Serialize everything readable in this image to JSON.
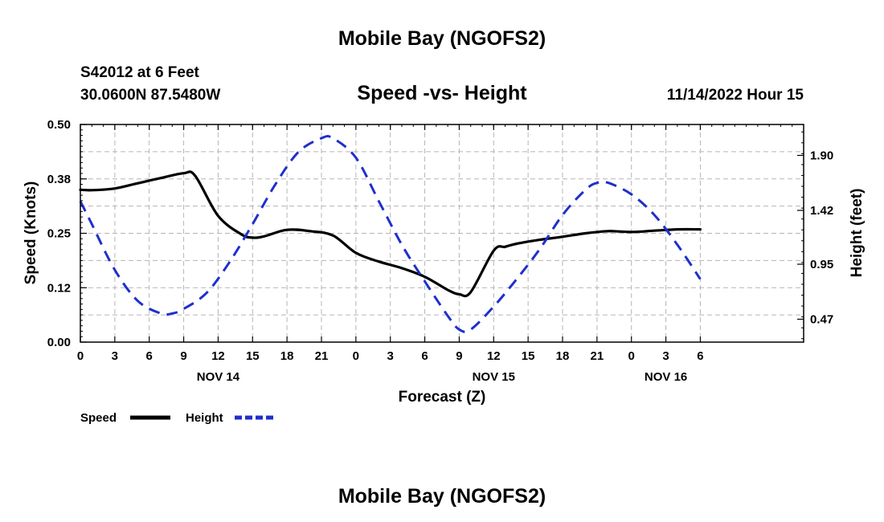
{
  "header": {
    "title": "Mobile Bay (NGOFS2)",
    "station": "S42012 at 6 Feet",
    "coords": "30.0600N  87.5480W",
    "timestamp": "11/14/2022 Hour 15"
  },
  "footer": {
    "title": "Mobile Bay (NGOFS2)"
  },
  "chart_data": {
    "type": "line",
    "title": "Speed -vs- Height",
    "xlabel": "Forecast (Z)",
    "ylabel": "Speed (Knots)",
    "y2label": "Height (feet)",
    "grid": true,
    "xlim": [
      0,
      63
    ],
    "ylim": [
      0,
      0.5
    ],
    "y2lim": [
      0.27,
      2.17
    ],
    "x_ticks": [
      0,
      3,
      6,
      9,
      12,
      15,
      18,
      21,
      24,
      27,
      30,
      33,
      36,
      39,
      42,
      45,
      48,
      51,
      54
    ],
    "x_tick_labels": [
      "0",
      "3",
      "6",
      "9",
      "12",
      "15",
      "18",
      "21",
      "0",
      "3",
      "6",
      "9",
      "12",
      "15",
      "18",
      "21",
      "0",
      "3",
      "6"
    ],
    "y_ticks": [
      0,
      0.125,
      0.25,
      0.375,
      0.5
    ],
    "y_tick_labels": [
      "0.00",
      "0.12",
      "0.25",
      "0.38",
      "0.50"
    ],
    "y2_ticks": [
      0.47,
      0.95,
      1.42,
      1.9
    ],
    "y2_tick_labels": [
      "0.47",
      "0.95",
      "1.42",
      "1.90"
    ],
    "date_labels": [
      {
        "x": 12,
        "label": "NOV 14"
      },
      {
        "x": 36,
        "label": "NOV 15"
      },
      {
        "x": 51,
        "label": "NOV 16"
      }
    ],
    "legend": {
      "position": "bottom-left"
    },
    "series": [
      {
        "name": "Speed",
        "axis": "left",
        "color": "#000000",
        "style": "solid",
        "x": [
          0,
          1,
          3,
          5,
          7,
          9,
          10,
          12,
          14,
          15,
          16,
          18,
          20,
          22,
          24,
          26,
          28,
          30,
          32,
          33,
          34,
          36,
          37,
          38,
          40,
          42,
          44,
          46,
          48,
          50,
          52,
          54
        ],
        "y": [
          0.35,
          0.349,
          0.353,
          0.365,
          0.377,
          0.388,
          0.382,
          0.29,
          0.248,
          0.24,
          0.243,
          0.258,
          0.255,
          0.245,
          0.205,
          0.185,
          0.17,
          0.15,
          0.12,
          0.11,
          0.115,
          0.21,
          0.219,
          0.226,
          0.235,
          0.242,
          0.25,
          0.255,
          0.253,
          0.256,
          0.259,
          0.259
        ]
      },
      {
        "name": "Height",
        "axis": "right",
        "color": "#1f2fcc",
        "style": "dashed",
        "x": [
          0,
          1,
          3,
          5,
          7,
          8,
          9,
          11,
          13,
          15,
          17,
          19,
          21,
          22,
          24,
          26,
          28,
          30,
          32,
          33,
          34,
          36,
          38,
          40,
          42,
          44,
          45,
          46,
          48,
          50,
          52,
          54
        ],
        "y": [
          1.5,
          1.3,
          0.9,
          0.63,
          0.52,
          0.52,
          0.56,
          0.7,
          0.97,
          1.3,
          1.65,
          1.93,
          2.05,
          2.05,
          1.88,
          1.5,
          1.12,
          0.8,
          0.5,
          0.38,
          0.38,
          0.58,
          0.82,
          1.08,
          1.38,
          1.6,
          1.66,
          1.66,
          1.56,
          1.38,
          1.12,
          0.82
        ]
      }
    ]
  }
}
